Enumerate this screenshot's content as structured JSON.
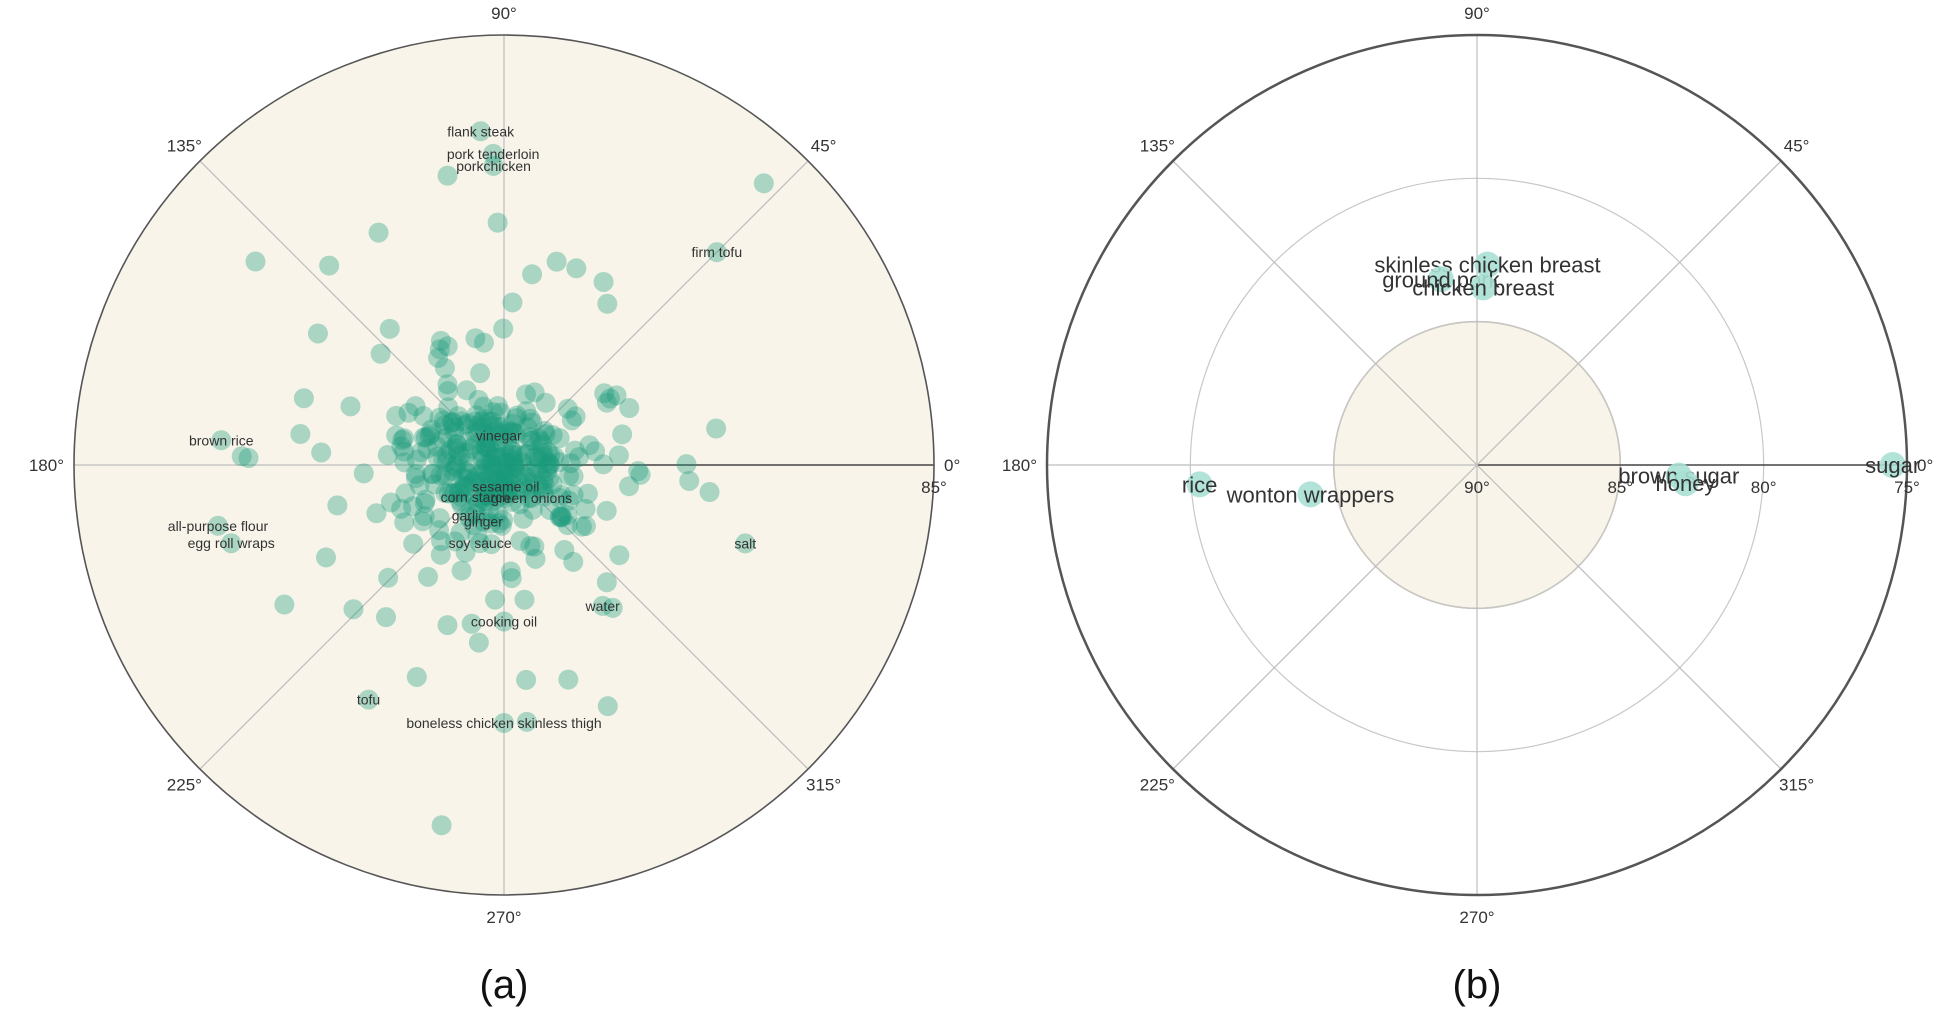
{
  "chart_data": [
    {
      "type": "scatter",
      "subtype": "polar",
      "caption": "(a)",
      "angular_ticks": [
        "0°",
        "45°",
        "90°",
        "135°",
        "180°",
        "225°",
        "270°",
        "315°"
      ],
      "radial_ticks": [
        "90°",
        "85°"
      ],
      "radial_range_deg": [
        90,
        85
      ],
      "background_color": "#f8f4ea",
      "marker_color": "#1a9a7a",
      "labeled_points": [
        {
          "label": "flank steak",
          "theta": 94,
          "r": 3.89
        },
        {
          "label": "pork tenderloin",
          "theta": 92,
          "r": 3.62
        },
        {
          "label": "porkchicken",
          "theta": 92,
          "r": 3.48
        },
        {
          "label": "firm tofu",
          "theta": 45,
          "r": 3.5
        },
        {
          "label": "vinegar",
          "theta": 100,
          "r": 0.35
        },
        {
          "label": "brown rice",
          "theta": 175,
          "r": 3.3
        },
        {
          "label": "all-purpose flour",
          "theta": 192,
          "r": 3.4
        },
        {
          "label": "egg roll wraps",
          "theta": 196,
          "r": 3.3
        },
        {
          "label": "corn starch",
          "theta": 228,
          "r": 0.5
        },
        {
          "label": "sesame oil",
          "theta": 275,
          "r": 0.25
        },
        {
          "label": "green onions",
          "theta": 310,
          "r": 0.5
        },
        {
          "label": "garlic",
          "theta": 235,
          "r": 0.72
        },
        {
          "label": "ginger",
          "theta": 250,
          "r": 0.7
        },
        {
          "label": "soy sauce",
          "theta": 253,
          "r": 0.95
        },
        {
          "label": "salt",
          "theta": 342,
          "r": 2.95
        },
        {
          "label": "cooking oil",
          "theta": 270,
          "r": 1.82
        },
        {
          "label": "water",
          "theta": 305,
          "r": 2.0
        },
        {
          "label": "tofu",
          "theta": 240,
          "r": 3.15
        },
        {
          "label": "boneless chicken skinless thigh",
          "theta": 270,
          "r": 3.0
        }
      ],
      "cloud_count": 380
    },
    {
      "type": "scatter",
      "subtype": "polar",
      "caption": "(b)",
      "angular_ticks": [
        "0°",
        "45°",
        "90°",
        "135°",
        "180°",
        "225°",
        "270°",
        "315°"
      ],
      "radial_ticks": [
        "90°",
        "85°",
        "80°",
        "75°"
      ],
      "radial_range_deg": [
        90,
        75
      ],
      "highlight_region": {
        "r_from": 90,
        "r_to": 85,
        "color": "#f8f4ea"
      },
      "marker_color": "#a8e0d4",
      "labeled_points": [
        {
          "label": "skinless chicken breast",
          "theta": 87,
          "r": 7.0
        },
        {
          "label": "ground pork",
          "theta": 101,
          "r": 6.6
        },
        {
          "label": "chicken breast",
          "theta": 88,
          "r": 6.2
        },
        {
          "label": "rice",
          "theta": 184,
          "r": 9.7
        },
        {
          "label": "wonton wrappers",
          "theta": 190,
          "r": 5.9
        },
        {
          "label": "brown sugar",
          "theta": 357,
          "r": 7.05
        },
        {
          "label": "honey",
          "theta": 355,
          "r": 7.3
        },
        {
          "label": "sugar",
          "theta": 0,
          "r": 14.5
        }
      ]
    }
  ]
}
